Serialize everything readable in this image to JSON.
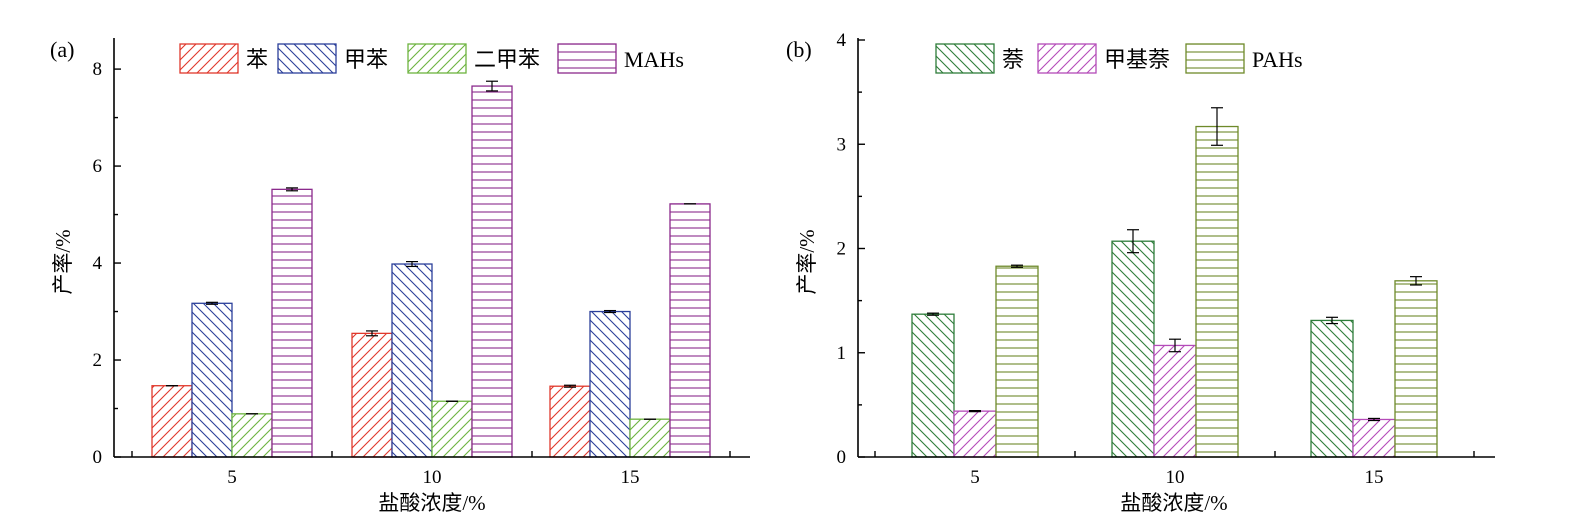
{
  "chart_data": [
    {
      "type": "bar",
      "panel_label": "(a)",
      "categories": [
        "5",
        "10",
        "15"
      ],
      "xlabel": "盐酸浓度/%",
      "ylabel": "产率/%",
      "ylim": [
        0,
        8.6
      ],
      "yticks": [
        "0",
        "2",
        "4",
        "6",
        "8"
      ],
      "legend_position": "top",
      "series": [
        {
          "name": "苯",
          "color": "#e0382c",
          "pattern": "diag-up",
          "values": [
            1.47,
            2.55,
            1.46
          ],
          "errors": [
            0.0,
            0.05,
            0.02
          ]
        },
        {
          "name": "甲苯",
          "color": "#2b3f9a",
          "pattern": "diag-down",
          "values": [
            3.17,
            3.98,
            3.0
          ],
          "errors": [
            0.02,
            0.05,
            0.02
          ]
        },
        {
          "name": "二甲苯",
          "color": "#6db33f",
          "pattern": "diag-up",
          "values": [
            0.89,
            1.15,
            0.78
          ],
          "errors": [
            0.0,
            0.0,
            0.0
          ]
        },
        {
          "name": "MAHs",
          "color": "#8b2a8c",
          "pattern": "horizontal",
          "values": [
            5.52,
            7.65,
            5.22
          ],
          "errors": [
            0.03,
            0.1,
            0.0
          ]
        }
      ]
    },
    {
      "type": "bar",
      "panel_label": "(b)",
      "categories": [
        "5",
        "10",
        "15"
      ],
      "xlabel": "盐酸浓度/%",
      "ylabel": "产率/%",
      "ylim": [
        0,
        4
      ],
      "yticks": [
        "0",
        "1",
        "2",
        "3",
        "4"
      ],
      "legend_position": "top",
      "series": [
        {
          "name": "萘",
          "color": "#2e7d3a",
          "pattern": "diag-down",
          "values": [
            1.37,
            2.07,
            1.31
          ],
          "errors": [
            0.01,
            0.11,
            0.03
          ]
        },
        {
          "name": "甲基萘",
          "color": "#b44bb8",
          "pattern": "diag-up",
          "values": [
            0.44,
            1.07,
            0.36
          ],
          "errors": [
            0.005,
            0.06,
            0.01
          ]
        },
        {
          "name": "PAHs",
          "color": "#6e8a2a",
          "pattern": "horizontal",
          "values": [
            1.83,
            3.17,
            1.69
          ],
          "errors": [
            0.01,
            0.18,
            0.04
          ]
        }
      ]
    }
  ]
}
